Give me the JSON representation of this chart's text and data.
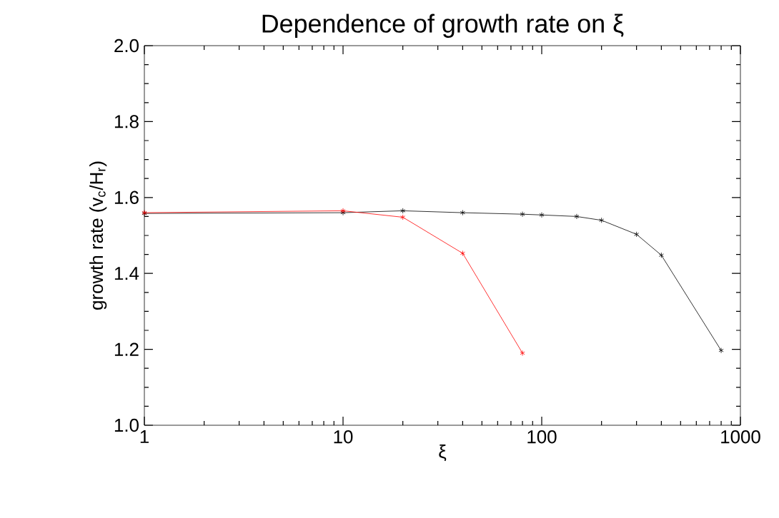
{
  "chart_data": {
    "type": "line",
    "title": "Dependence of growth rate on ξ",
    "xlabel": "ξ",
    "ylabel": "growth rate (v$_{c}$/H$_{r}$)",
    "log": "x",
    "marker": "cross",
    "line_style": "solid",
    "grid": false,
    "xlim": [
      1,
      1000
    ],
    "xticks": [
      1,
      10,
      100,
      1000
    ],
    "ylim": [
      1.0,
      2.0
    ],
    "yticks": [
      {
        "value": 1.0,
        "label": "1.0"
      },
      {
        "value": 1.2,
        "label": "1.2"
      },
      {
        "value": 1.4,
        "label": "1.4"
      },
      {
        "value": 1.6,
        "label": "1.6"
      },
      {
        "value": 1.8,
        "label": "1.8"
      },
      {
        "value": 2.0,
        "label": "2.0"
      }
    ],
    "series": [
      {
        "color": "#000000",
        "x": [
          1,
          10,
          20,
          40,
          80,
          100,
          150,
          200,
          300,
          400,
          800
        ],
        "values": [
          1.558,
          1.56,
          1.565,
          1.56,
          1.556,
          1.554,
          1.55,
          1.54,
          1.503,
          1.448,
          1.197
        ]
      },
      {
        "color": "#ff0000",
        "x": [
          1,
          10,
          20,
          40,
          80
        ],
        "values": [
          1.56,
          1.565,
          1.548,
          1.453,
          1.19
        ]
      }
    ]
  }
}
